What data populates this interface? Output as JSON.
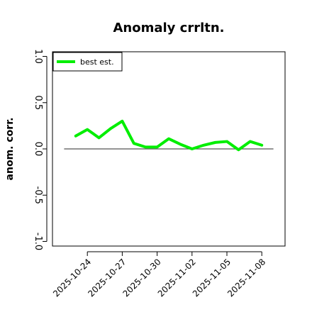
{
  "chart_data": {
    "type": "line",
    "title": "Anomaly crrltn.",
    "xlabel": "",
    "ylabel": "anom. corr.",
    "ylim": [
      -1.05,
      1.05
    ],
    "yticks": [
      -1.0,
      -0.5,
      0.0,
      0.5,
      1.0
    ],
    "ytick_labels": [
      "-1.0",
      "-0.5",
      "0.0",
      "0.5",
      "1.0"
    ],
    "xlim": [
      "2025-10-21",
      "2025-11-10"
    ],
    "xticks": [
      "2025-10-24",
      "2025-10-27",
      "2025-10-30",
      "2025-11-02",
      "2025-11-05",
      "2025-11-08"
    ],
    "xtick_labels": [
      "2025-10-24",
      "2025-10-27",
      "2025-10-30",
      "2025-11-02",
      "2025-11-05",
      "2025-11-08"
    ],
    "reference_line": {
      "y": 0.0,
      "from": "2025-10-22",
      "to": "2025-11-09",
      "color": "#555555"
    },
    "legend": {
      "position": "top-left",
      "entries": [
        "best est."
      ]
    },
    "grid": false,
    "series": [
      {
        "name": "best est.",
        "color": "#00ee00",
        "x": [
          "2025-10-23",
          "2025-10-24",
          "2025-10-25",
          "2025-10-26",
          "2025-10-27",
          "2025-10-28",
          "2025-10-29",
          "2025-10-30",
          "2025-10-31",
          "2025-11-01",
          "2025-11-02",
          "2025-11-03",
          "2025-11-04",
          "2025-11-05",
          "2025-11-06",
          "2025-11-07",
          "2025-11-08"
        ],
        "y": [
          0.14,
          0.21,
          0.12,
          0.22,
          0.3,
          0.06,
          0.02,
          0.02,
          0.11,
          0.05,
          0.0,
          0.04,
          0.07,
          0.08,
          -0.01,
          0.08,
          0.04
        ]
      }
    ]
  }
}
